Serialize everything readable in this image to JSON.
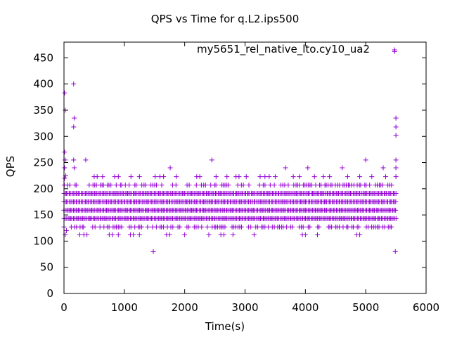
{
  "chart_data": {
    "type": "scatter",
    "title": "QPS vs Time for q.L2.ips500",
    "xlabel": "Time(s)",
    "ylabel": "QPS",
    "xlim": [
      0,
      6000
    ],
    "ylim": [
      0,
      480
    ],
    "xticks": [
      "0",
      "1000",
      "2000",
      "3000",
      "4000",
      "5000",
      "6000"
    ],
    "yticks": [
      "0",
      "50",
      "100",
      "150",
      "200",
      "250",
      "300",
      "350",
      "400",
      "450"
    ],
    "grid": false,
    "legend_position": "top-right",
    "series": [
      {
        "name": "my5651_rel_native_lto.cy10_ua2",
        "color": "#9400d3",
        "marker": "+",
        "dense_bands": {
          "x_start": 0,
          "x_end": 5500,
          "y_levels": [
            143,
            159,
            175,
            191
          ]
        },
        "sparse_bands": {
          "x_start": 0,
          "x_end": 5500,
          "y_levels": [
            127,
            207
          ]
        },
        "outliers": [
          [
            10,
            383
          ],
          [
            20,
            350
          ],
          [
            10,
            270
          ],
          [
            20,
            255
          ],
          [
            10,
            240
          ],
          [
            30,
            225
          ],
          [
            10,
            220
          ],
          [
            20,
            112
          ],
          [
            40,
            120
          ],
          [
            160,
            400
          ],
          [
            170,
            335
          ],
          [
            160,
            318
          ],
          [
            160,
            255
          ],
          [
            170,
            240
          ],
          [
            360,
            255
          ],
          [
            260,
            112
          ],
          [
            330,
            112
          ],
          [
            380,
            112
          ],
          [
            500,
            223
          ],
          [
            550,
            223
          ],
          [
            640,
            223
          ],
          [
            840,
            223
          ],
          [
            900,
            223
          ],
          [
            1110,
            223
          ],
          [
            1250,
            223
          ],
          [
            1510,
            223
          ],
          [
            1590,
            223
          ],
          [
            1650,
            223
          ],
          [
            1760,
            240
          ],
          [
            1860,
            223
          ],
          [
            2200,
            223
          ],
          [
            2250,
            223
          ],
          [
            2450,
            255
          ],
          [
            2520,
            223
          ],
          [
            2700,
            223
          ],
          [
            2850,
            223
          ],
          [
            2900,
            223
          ],
          [
            3020,
            223
          ],
          [
            3250,
            223
          ],
          [
            3330,
            223
          ],
          [
            3400,
            223
          ],
          [
            3500,
            223
          ],
          [
            3670,
            240
          ],
          [
            3800,
            223
          ],
          [
            3900,
            223
          ],
          [
            4040,
            240
          ],
          [
            4150,
            223
          ],
          [
            4300,
            223
          ],
          [
            4400,
            223
          ],
          [
            4610,
            240
          ],
          [
            4700,
            223
          ],
          [
            4900,
            223
          ],
          [
            5000,
            255
          ],
          [
            5100,
            223
          ],
          [
            5290,
            240
          ],
          [
            5330,
            223
          ],
          [
            750,
            112
          ],
          [
            800,
            112
          ],
          [
            900,
            112
          ],
          [
            1100,
            112
          ],
          [
            1150,
            112
          ],
          [
            1250,
            112
          ],
          [
            1480,
            80
          ],
          [
            1700,
            112
          ],
          [
            1750,
            112
          ],
          [
            2000,
            112
          ],
          [
            2400,
            112
          ],
          [
            2600,
            112
          ],
          [
            2650,
            112
          ],
          [
            2800,
            112
          ],
          [
            3150,
            112
          ],
          [
            3950,
            112
          ],
          [
            4000,
            112
          ],
          [
            4200,
            112
          ],
          [
            4850,
            112
          ],
          [
            4900,
            112
          ],
          [
            5480,
            462
          ],
          [
            5500,
            335
          ],
          [
            5500,
            318
          ],
          [
            5500,
            302
          ],
          [
            5500,
            255
          ],
          [
            5500,
            240
          ],
          [
            5500,
            223
          ],
          [
            5490,
            80
          ]
        ]
      }
    ]
  }
}
